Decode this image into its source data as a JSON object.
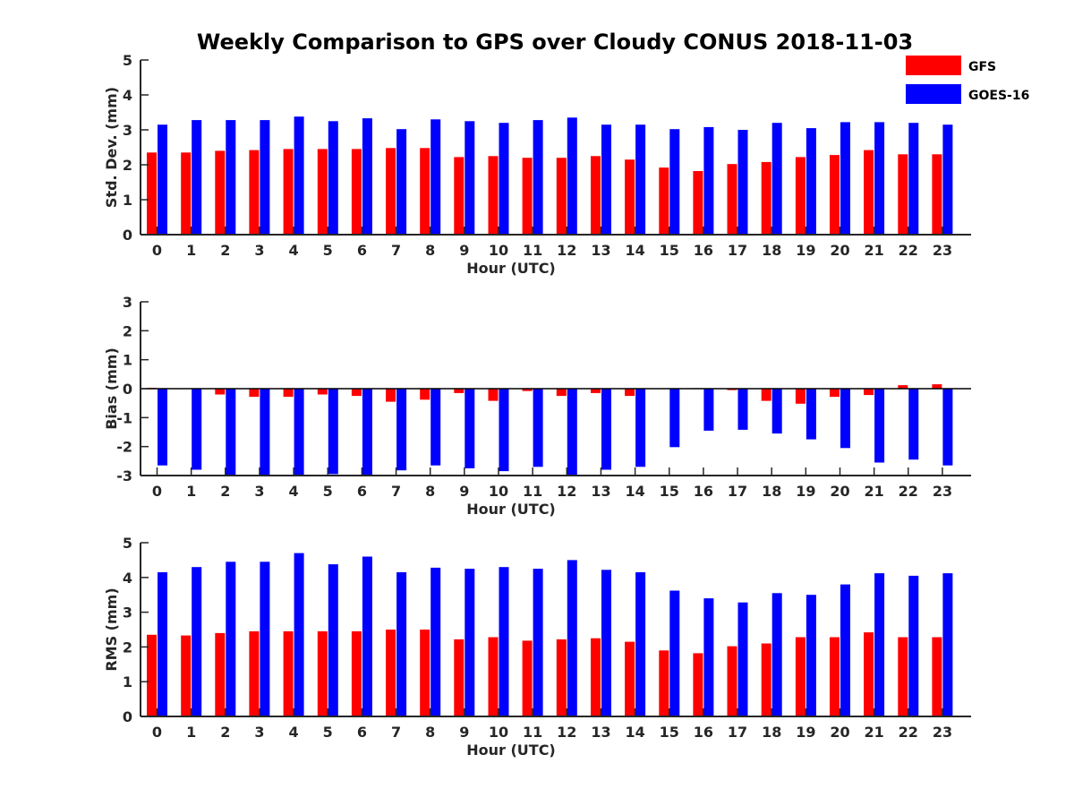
{
  "figure_title": "Weekly Comparison to GPS over Cloudy CONUS 2018-11-03",
  "colors": {
    "GFS": "#ff0000",
    "GOES-16": "#0000ff"
  },
  "legend": [
    "GFS",
    "GOES-16"
  ],
  "chart_data": [
    {
      "type": "bar",
      "xlabel": "Hour (UTC)",
      "ylabel": "Std. Dev. (mm)",
      "ylim": [
        0,
        5
      ],
      "yticks": [
        0,
        1,
        2,
        3,
        4,
        5
      ],
      "categories": [
        "0",
        "1",
        "2",
        "3",
        "4",
        "5",
        "6",
        "7",
        "8",
        "9",
        "10",
        "11",
        "12",
        "13",
        "14",
        "15",
        "16",
        "17",
        "18",
        "19",
        "20",
        "21",
        "22",
        "23"
      ],
      "series": [
        {
          "name": "GFS",
          "values": [
            2.35,
            2.35,
            2.4,
            2.42,
            2.45,
            2.45,
            2.45,
            2.48,
            2.48,
            2.22,
            2.25,
            2.2,
            2.2,
            2.25,
            2.15,
            1.92,
            1.82,
            2.02,
            2.08,
            2.22,
            2.28,
            2.42,
            2.3,
            2.3
          ]
        },
        {
          "name": "GOES-16",
          "values": [
            3.15,
            3.28,
            3.28,
            3.28,
            3.38,
            3.25,
            3.33,
            3.02,
            3.3,
            3.25,
            3.2,
            3.28,
            3.35,
            3.15,
            3.15,
            3.02,
            3.08,
            3.0,
            3.2,
            3.05,
            3.22,
            3.22,
            3.2,
            3.15
          ]
        }
      ]
    },
    {
      "type": "bar",
      "xlabel": "Hour (UTC)",
      "ylabel": "Bias (mm)",
      "ylim": [
        -3,
        3
      ],
      "yticks": [
        -3,
        -2,
        -1,
        0,
        1,
        2,
        3
      ],
      "zero_line": true,
      "categories": [
        "0",
        "1",
        "2",
        "3",
        "4",
        "5",
        "6",
        "7",
        "8",
        "9",
        "10",
        "11",
        "12",
        "13",
        "14",
        "15",
        "16",
        "17",
        "18",
        "19",
        "20",
        "21",
        "22",
        "23"
      ],
      "series": [
        {
          "name": "GFS",
          "values": [
            0.03,
            0.0,
            -0.2,
            -0.28,
            -0.28,
            -0.2,
            -0.25,
            -0.45,
            -0.38,
            -0.15,
            -0.42,
            -0.08,
            -0.25,
            -0.15,
            -0.25,
            0.0,
            0.02,
            -0.05,
            -0.42,
            -0.52,
            -0.28,
            -0.22,
            0.12,
            0.15
          ]
        },
        {
          "name": "GOES-16",
          "values": [
            -2.65,
            -2.8,
            -3.0,
            -3.0,
            -3.0,
            -2.95,
            -3.0,
            -2.82,
            -2.65,
            -2.75,
            -2.85,
            -2.7,
            -3.0,
            -2.8,
            -2.7,
            -2.02,
            -1.45,
            -1.42,
            -1.55,
            -1.75,
            -2.05,
            -2.55,
            -2.45,
            -2.65
          ]
        }
      ]
    },
    {
      "type": "bar",
      "xlabel": "Hour (UTC)",
      "ylabel": "RMS (mm)",
      "ylim": [
        0,
        5
      ],
      "yticks": [
        0,
        1,
        2,
        3,
        4,
        5
      ],
      "categories": [
        "0",
        "1",
        "2",
        "3",
        "4",
        "5",
        "6",
        "7",
        "8",
        "9",
        "10",
        "11",
        "12",
        "13",
        "14",
        "15",
        "16",
        "17",
        "18",
        "19",
        "20",
        "21",
        "22",
        "23"
      ],
      "series": [
        {
          "name": "GFS",
          "values": [
            2.35,
            2.33,
            2.4,
            2.45,
            2.45,
            2.45,
            2.45,
            2.5,
            2.5,
            2.22,
            2.28,
            2.18,
            2.22,
            2.25,
            2.15,
            1.9,
            1.82,
            2.02,
            2.1,
            2.28,
            2.28,
            2.42,
            2.28,
            2.28
          ]
        },
        {
          "name": "GOES-16",
          "values": [
            4.15,
            4.3,
            4.45,
            4.45,
            4.7,
            4.38,
            4.6,
            4.15,
            4.28,
            4.25,
            4.3,
            4.25,
            4.5,
            4.22,
            4.15,
            3.62,
            3.4,
            3.28,
            3.55,
            3.5,
            3.8,
            4.12,
            4.05,
            4.12
          ]
        }
      ]
    }
  ]
}
